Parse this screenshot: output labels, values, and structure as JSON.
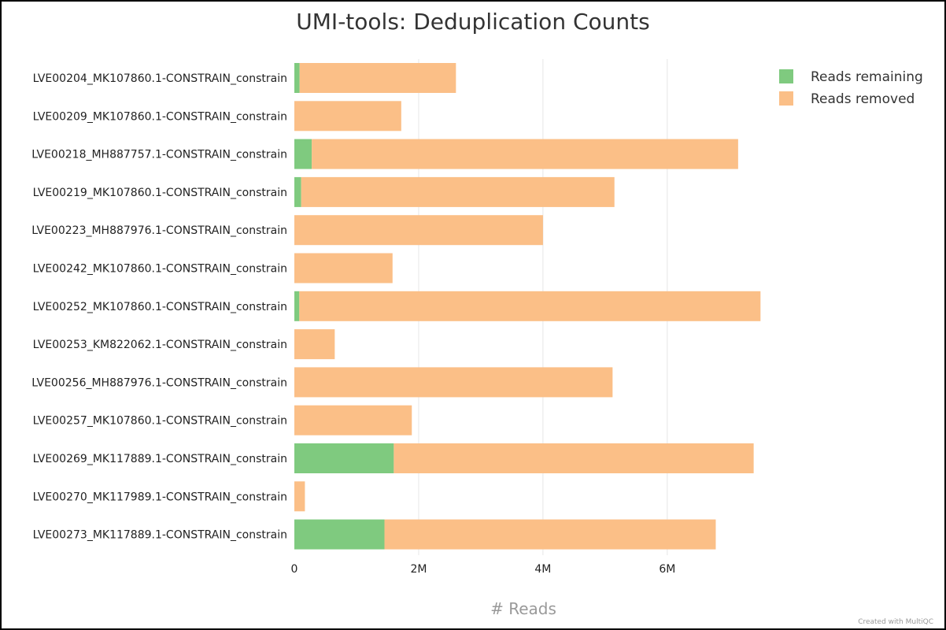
{
  "chart_data": {
    "type": "bar",
    "orientation": "horizontal",
    "stacked": true,
    "title": "UMI-tools: Deduplication Counts",
    "xlabel": "# Reads",
    "ylabel": "",
    "xlim": [
      0,
      7800000
    ],
    "x_ticks": [
      0,
      2000000,
      4000000,
      6000000
    ],
    "x_tick_labels": [
      "0",
      "2M",
      "4M",
      "6M"
    ],
    "grid": true,
    "legend_position": "top-right",
    "categories": [
      "LVE00204_MK107860.1-CONSTRAIN_constrain",
      "LVE00209_MK107860.1-CONSTRAIN_constrain",
      "LVE00218_MH887757.1-CONSTRAIN_constrain",
      "LVE00219_MK107860.1-CONSTRAIN_constrain",
      "LVE00223_MH887976.1-CONSTRAIN_constrain",
      "LVE00242_MK107860.1-CONSTRAIN_constrain",
      "LVE00252_MK107860.1-CONSTRAIN_constrain",
      "LVE00253_KM822062.1-CONSTRAIN_constrain",
      "LVE00256_MH887976.1-CONSTRAIN_constrain",
      "LVE00257_MK107860.1-CONSTRAIN_constrain",
      "LVE00269_MK117889.1-CONSTRAIN_constrain",
      "LVE00270_MK117989.1-CONSTRAIN_constrain",
      "LVE00273_MK117889.1-CONSTRAIN_constrain"
    ],
    "series": [
      {
        "name": "Reads remaining",
        "color": "#7fca7f",
        "values": [
          85000,
          0,
          280000,
          110000,
          0,
          0,
          80000,
          0,
          0,
          0,
          1600000,
          0,
          1450000
        ]
      },
      {
        "name": "Reads removed",
        "color": "#fbbf87",
        "values": [
          2515000,
          1720000,
          6860000,
          5040000,
          4000000,
          1580000,
          7420000,
          650000,
          5120000,
          1890000,
          5790000,
          170000,
          5330000
        ]
      }
    ]
  },
  "credit": "Created with MultiQC"
}
